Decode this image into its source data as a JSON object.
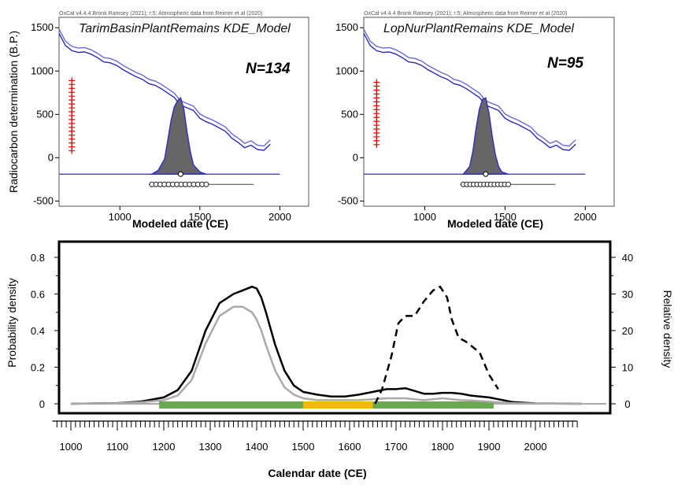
{
  "chart_data": [
    {
      "type": "line",
      "credit": "OxCal v4.4.4 Bronk Ramsey (2021); r:5; Atmospheric data from Reimer et al (2020)",
      "title": "TarimBasinPlantRemains KDE_Model",
      "annotation": "N=134",
      "xlabel": "Modeled date (CE)",
      "ylabel": "Radiocarbon determination (B.P.)",
      "xlim": [
        620,
        2180
      ],
      "ylim": [
        -560,
        1620
      ],
      "xticks": [
        1000,
        1500,
        2000
      ],
      "yticks": [
        1500,
        1000,
        500,
        0,
        -500
      ],
      "calibration_curve": {
        "x": [
          620,
          660,
          700,
          740,
          780,
          820,
          860,
          900,
          940,
          980,
          1020,
          1060,
          1100,
          1140,
          1180,
          1220,
          1260,
          1300,
          1340,
          1380,
          1420,
          1460,
          1500,
          1540,
          1580,
          1620,
          1660,
          1700,
          1740,
          1780,
          1820,
          1860,
          1900,
          1940
        ],
        "y": [
          1460,
          1320,
          1260,
          1240,
          1245,
          1220,
          1180,
          1130,
          1120,
          1090,
          1040,
          1000,
          960,
          930,
          880,
          860,
          820,
          770,
          720,
          630,
          600,
          570,
          480,
          440,
          410,
          370,
          330,
          250,
          200,
          140,
          170,
          120,
          110,
          180
        ]
      },
      "kde_density": {
        "x": [
          1200,
          1240,
          1280,
          1300,
          1320,
          1340,
          1360,
          1380,
          1400,
          1420,
          1440,
          1460,
          1500,
          1540
        ],
        "relative_height": [
          0,
          0.05,
          0.2,
          0.45,
          0.7,
          0.88,
          0.96,
          1.0,
          0.85,
          0.55,
          0.3,
          0.12,
          0.03,
          0
        ]
      },
      "radiocarbon_range_markers": {
        "x": 700,
        "y_min": 80,
        "y_max": 900
      }
    },
    {
      "type": "line",
      "credit": "OxCal v4.4.4 Bronk Ramsey (2021); r:5; Atmospheric data from Reimer et al (2020)",
      "title": "LopNurPlantRemains KDE_Model",
      "annotation": "N=95",
      "xlabel": "Modeled date (CE)",
      "ylabel": "",
      "xlim": [
        620,
        2180
      ],
      "ylim": [
        -560,
        1620
      ],
      "xticks": [
        1000,
        1500,
        2000
      ],
      "yticks": [
        1500,
        1000,
        500,
        0,
        -500
      ],
      "calibration_curve": {
        "x": [
          620,
          660,
          700,
          740,
          780,
          820,
          860,
          900,
          940,
          980,
          1020,
          1060,
          1100,
          1140,
          1180,
          1220,
          1260,
          1300,
          1340,
          1380,
          1420,
          1460,
          1500,
          1540,
          1580,
          1620,
          1660,
          1700,
          1740,
          1780,
          1820,
          1860,
          1900,
          1940
        ],
        "y": [
          1460,
          1320,
          1260,
          1240,
          1245,
          1220,
          1180,
          1130,
          1120,
          1090,
          1040,
          1000,
          960,
          930,
          880,
          860,
          820,
          770,
          720,
          630,
          600,
          570,
          480,
          440,
          410,
          370,
          330,
          250,
          200,
          140,
          170,
          120,
          110,
          180
        ]
      },
      "kde_density": {
        "x": [
          1240,
          1280,
          1300,
          1320,
          1340,
          1360,
          1380,
          1400,
          1420,
          1440,
          1460,
          1480,
          1520
        ],
        "relative_height": [
          0,
          0.1,
          0.3,
          0.6,
          0.85,
          0.98,
          1.0,
          0.8,
          0.5,
          0.25,
          0.1,
          0.03,
          0
        ]
      },
      "radiocarbon_range_markers": {
        "x": 700,
        "y_min": 150,
        "y_max": 900
      }
    },
    {
      "type": "line",
      "xlabel": "Calendar date (CE)",
      "ylabel": "Probability density",
      "ylabel_right": "Relative density",
      "xlim": [
        960,
        2120
      ],
      "ylim": [
        -0.03,
        0.85
      ],
      "ylim_right": [
        -1.5,
        42.5
      ],
      "xticks": [
        1000,
        1100,
        1200,
        1300,
        1400,
        1500,
        1600,
        1700,
        1800,
        1900,
        2000
      ],
      "yticks": [
        0,
        0.2,
        0.4,
        0.6,
        0.8
      ],
      "yticks_right": [
        0,
        10,
        20,
        30,
        40
      ],
      "series": [
        {
          "axis": "left",
          "color": "#000000",
          "style": "solid",
          "x": [
            1000,
            1100,
            1150,
            1200,
            1230,
            1260,
            1290,
            1320,
            1350,
            1370,
            1390,
            1400,
            1410,
            1420,
            1440,
            1460,
            1480,
            1500,
            1530,
            1560,
            1590,
            1620,
            1650,
            1680,
            1700,
            1720,
            1740,
            1760,
            1780,
            1800,
            1820,
            1840,
            1860,
            1880,
            1900,
            1920,
            1950,
            2000,
            2100
          ],
          "y": [
            0,
            0.004,
            0.012,
            0.035,
            0.075,
            0.18,
            0.4,
            0.55,
            0.6,
            0.62,
            0.64,
            0.63,
            0.58,
            0.5,
            0.32,
            0.18,
            0.1,
            0.065,
            0.05,
            0.04,
            0.04,
            0.05,
            0.065,
            0.08,
            0.08,
            0.085,
            0.07,
            0.055,
            0.055,
            0.06,
            0.06,
            0.055,
            0.045,
            0.04,
            0.035,
            0.025,
            0.01,
            0.002,
            0
          ]
        },
        {
          "axis": "left",
          "color": "#aaaaaa",
          "style": "solid",
          "x": [
            1000,
            1100,
            1150,
            1200,
            1230,
            1260,
            1290,
            1320,
            1350,
            1370,
            1390,
            1400,
            1410,
            1420,
            1440,
            1460,
            1480,
            1500,
            1530,
            1560,
            1590,
            1620,
            1650,
            1680,
            1700,
            1720,
            1740,
            1760,
            1780,
            1800,
            1820,
            1840,
            1860,
            1880,
            1900,
            1920,
            1950,
            2000,
            2100
          ],
          "y": [
            0,
            0.003,
            0.008,
            0.02,
            0.045,
            0.13,
            0.33,
            0.48,
            0.53,
            0.53,
            0.5,
            0.46,
            0.4,
            0.32,
            0.18,
            0.09,
            0.05,
            0.03,
            0.02,
            0.02,
            0.02,
            0.02,
            0.025,
            0.03,
            0.03,
            0.03,
            0.025,
            0.02,
            0.025,
            0.03,
            0.025,
            0.02,
            0.018,
            0.015,
            0.012,
            0.008,
            0.004,
            0.001,
            0
          ]
        },
        {
          "axis": "right",
          "color": "#000000",
          "style": "dashed",
          "x": [
            1655,
            1670,
            1690,
            1705,
            1720,
            1740,
            1760,
            1780,
            1795,
            1810,
            1820,
            1835,
            1850,
            1865,
            1880,
            1900,
            1920
          ],
          "y": [
            0,
            4,
            13,
            22,
            24,
            24,
            28,
            31,
            32,
            29,
            23,
            18,
            17,
            15.5,
            14,
            8,
            4
          ]
        }
      ],
      "period_bar": [
        {
          "x_start": 1190,
          "x_end": 1500,
          "color": "#6aa84f"
        },
        {
          "x_start": 1500,
          "x_end": 1650,
          "color": "#f6b800"
        },
        {
          "x_start": 1650,
          "x_end": 1910,
          "color": "#6aa84f"
        }
      ]
    }
  ]
}
